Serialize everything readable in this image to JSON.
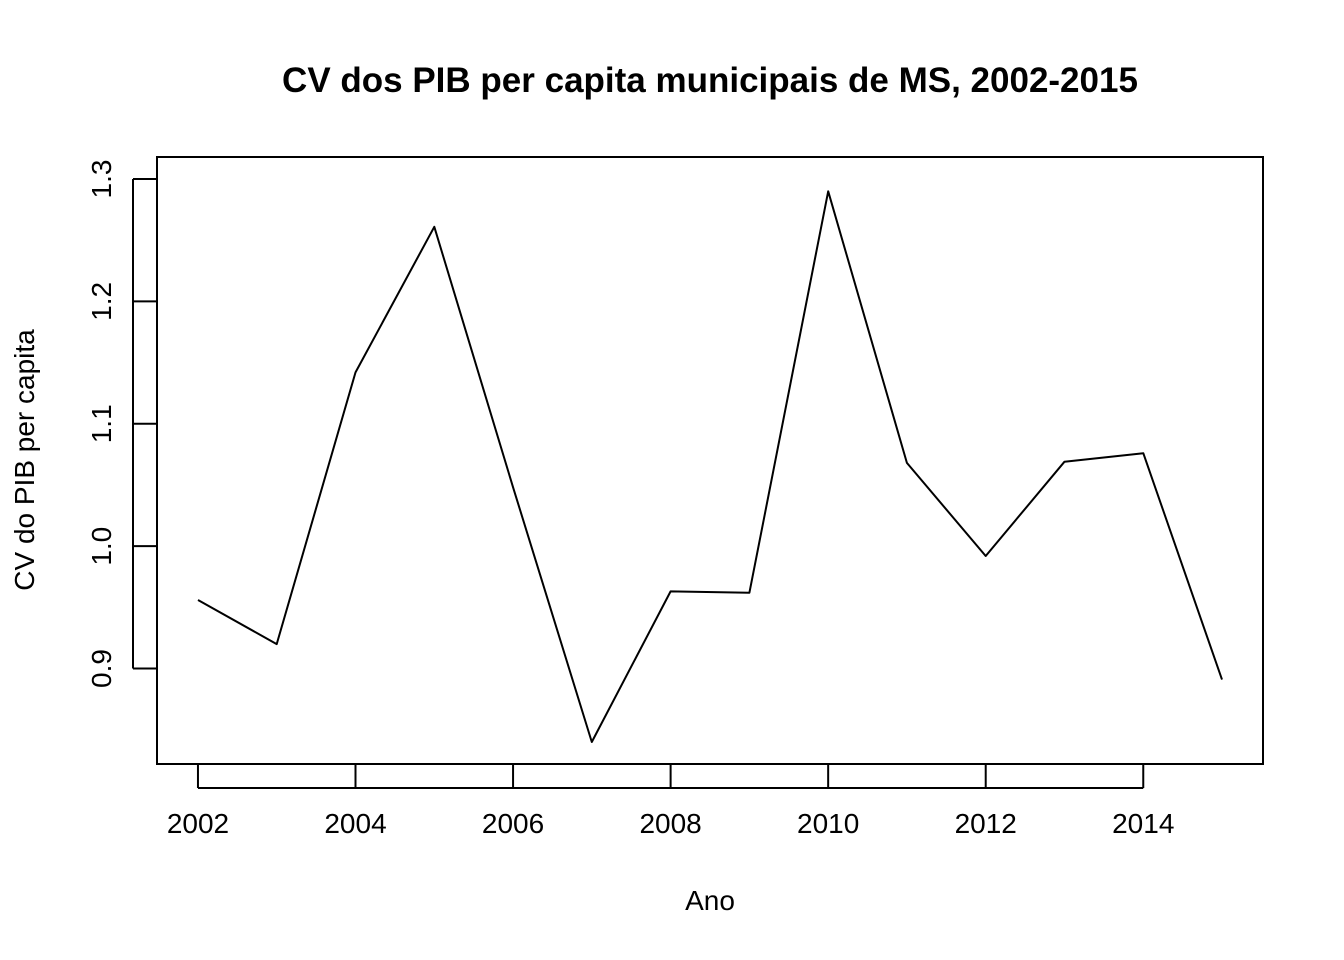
{
  "chart_data": {
    "type": "line",
    "title": "CV dos PIB per capita municipais de MS, 2002-2015",
    "xlabel": "Ano",
    "ylabel": "CV do PIB per capita",
    "x": [
      2002,
      2003,
      2004,
      2005,
      2006,
      2007,
      2008,
      2009,
      2010,
      2011,
      2012,
      2013,
      2014,
      2015
    ],
    "series": [
      {
        "values": [
          0.956,
          0.92,
          1.142,
          1.261,
          1.048,
          0.84,
          0.963,
          0.962,
          1.29,
          1.068,
          0.992,
          1.069,
          1.076,
          0.891
        ]
      }
    ],
    "xticks": [
      2002,
      2004,
      2006,
      2008,
      2010,
      2012,
      2014
    ],
    "xtick_labels": [
      "2002",
      "2004",
      "2006",
      "2008",
      "2010",
      "2012",
      "2014"
    ],
    "yticks": [
      0.9,
      1.0,
      1.1,
      1.2,
      1.3
    ],
    "ytick_labels": [
      "0.9",
      "1.0",
      "1.1",
      "1.2",
      "1.3"
    ],
    "xlim": [
      2001.48,
      2015.52
    ],
    "ylim": [
      0.822,
      1.318
    ],
    "grid": false,
    "line_color": "#000000"
  }
}
